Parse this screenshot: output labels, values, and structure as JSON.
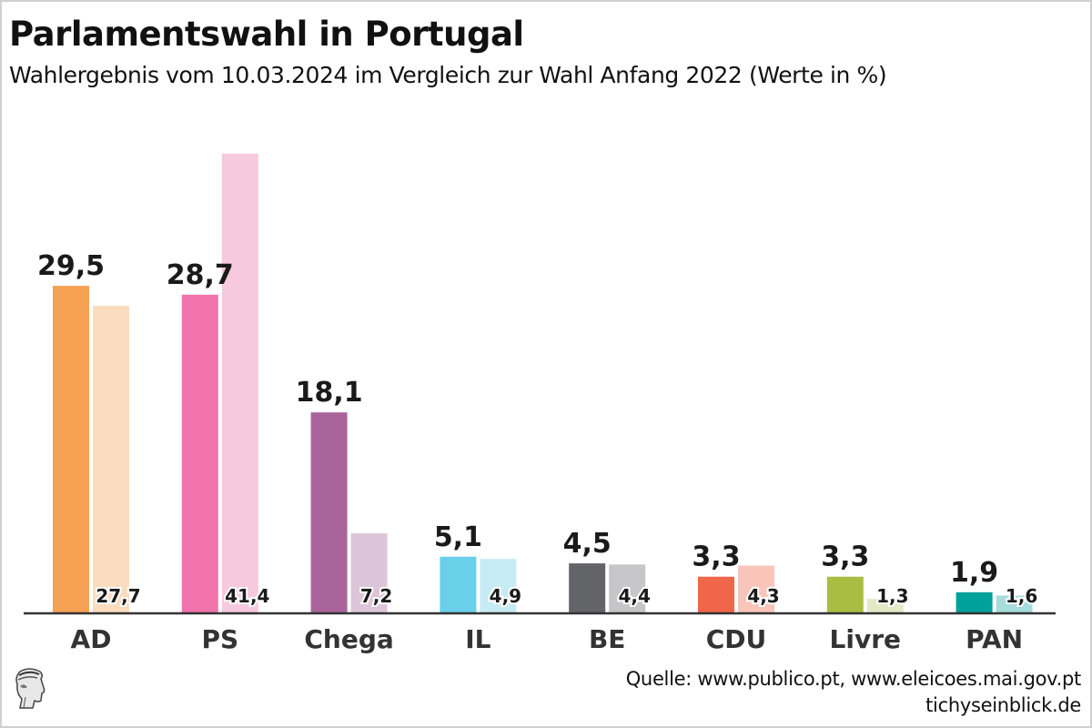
{
  "title": "Parlamentswahl in Portugal",
  "subtitle": "Wahlergebnis vom 10.03.2024 im Vergleich zur Wahl Anfang 2022 (Werte in %)",
  "source_line1": "Quelle: www.publico.pt, www.eleicoes.mai.gov.pt",
  "source_line2": "tichyseinblick.de",
  "logo_icon": "hermes-head-icon",
  "chart_data": {
    "type": "bar",
    "title": "Parlamentswahl in Portugal",
    "subtitle": "Wahlergebnis vom 10.03.2024 im Vergleich zur Wahl Anfang 2022 (Werte in %)",
    "xlabel": "",
    "ylabel": "",
    "ylim": [
      0,
      42
    ],
    "grid": false,
    "legend": "none",
    "categories": [
      "AD",
      "PS",
      "Chega",
      "IL",
      "BE",
      "CDU",
      "Livre",
      "PAN"
    ],
    "series": [
      {
        "name": "2024",
        "values": [
          29.5,
          28.7,
          18.1,
          5.1,
          4.5,
          3.3,
          3.3,
          1.9
        ],
        "labels": [
          "29,5",
          "28,7",
          "18,1",
          "5,1",
          "4,5",
          "3,3",
          "3,3",
          "1,9"
        ]
      },
      {
        "name": "2022",
        "values": [
          27.7,
          41.4,
          7.2,
          4.9,
          4.4,
          4.3,
          1.3,
          1.6
        ],
        "labels": [
          "27,7",
          "41,4",
          "7,2",
          "4,9",
          "4,4",
          "4,3",
          "1,3",
          "1,6"
        ]
      }
    ],
    "colors_2024": [
      "#f7a154",
      "#f173ac",
      "#a8649b",
      "#6acfe9",
      "#626468",
      "#ef664a",
      "#a8bd42",
      "#00a19b"
    ],
    "colors_2022": [
      "#fbdcbf",
      "#f7c9de",
      "#ddc5d9",
      "#c7ebf5",
      "#c6c6c8",
      "#f9c5bb",
      "#e2e9c4",
      "#a6dcdb"
    ]
  }
}
